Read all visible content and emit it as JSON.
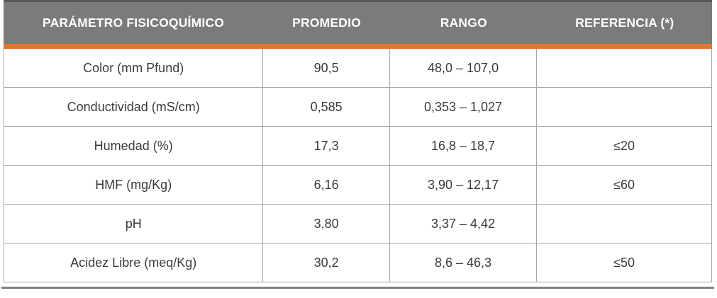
{
  "table": {
    "columns": [
      {
        "label": "PARÁMETRO FISICOQUÍMICO"
      },
      {
        "label": "PROMEDIO"
      },
      {
        "label": "RANGO"
      },
      {
        "label": "REFERENCIA (*)"
      }
    ],
    "rows": [
      {
        "parametro": "Color (mm Pfund)",
        "promedio": "90,5",
        "rango": "48,0 – 107,0",
        "referencia": ""
      },
      {
        "parametro": "Conductividad (mS/cm)",
        "promedio": "0,585",
        "rango": "0,353 – 1,027",
        "referencia": ""
      },
      {
        "parametro": "Humedad (%)",
        "promedio": "17,3",
        "rango": "16,8 – 18,7",
        "referencia": "≤20"
      },
      {
        "parametro": "HMF (mg/Kg)",
        "promedio": "6,16",
        "rango": "3,90 – 12,17",
        "referencia": "≤60"
      },
      {
        "parametro": "pH",
        "promedio": "3,80",
        "rango": "3,37 – 4,42",
        "referencia": ""
      },
      {
        "parametro": "Acidez Libre (meq/Kg)",
        "promedio": "30,2",
        "rango": "8,6 – 46,3",
        "referencia": "≤50"
      }
    ],
    "colors": {
      "header_bg": "#7B7B7B",
      "header_text": "#FFFFFF",
      "top_strip": "#595959",
      "accent_orange": "#E1772F",
      "grid_line": "#A6A6A6",
      "bottom_rule": "#808080",
      "body_text": "#3B3B3B"
    }
  }
}
